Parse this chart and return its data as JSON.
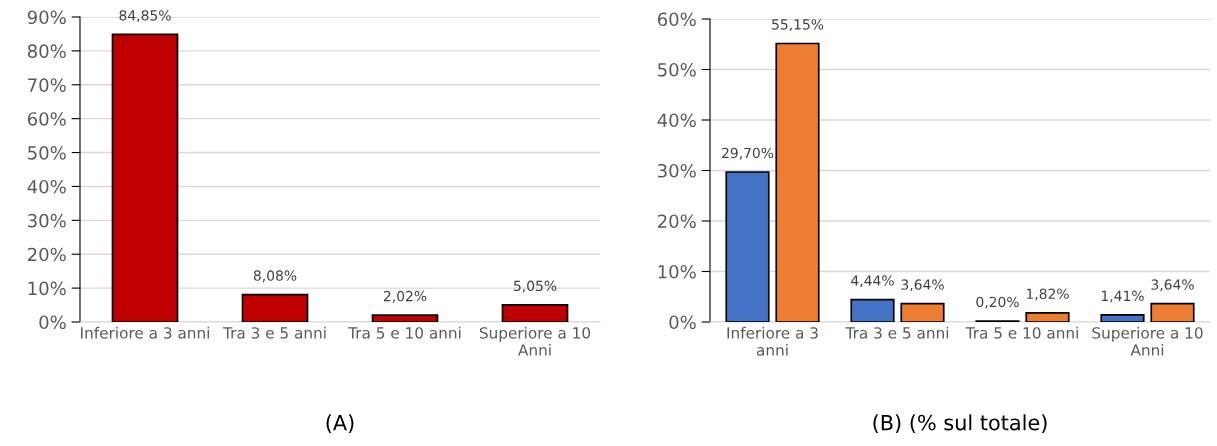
{
  "chart_data": [
    {
      "type": "bar",
      "xlabel": "(A)",
      "categories": [
        "Inferiore a 3 anni",
        "Tra 3 e 5 anni",
        "Tra 5 e 10 anni",
        "Superiore a 10\nAnni"
      ],
      "series": [
        {
          "color": "#c00000",
          "values": [
            84.85,
            8.08,
            2.02,
            5.05
          ],
          "value_labels": [
            "84,85%",
            "8,08%",
            "2,02%",
            "5,05%"
          ]
        }
      ],
      "ylim": [
        0,
        90
      ],
      "yticks": [
        {
          "value": 0,
          "label": "0%"
        },
        {
          "value": 10,
          "label": "10%"
        },
        {
          "value": 20,
          "label": "20%"
        },
        {
          "value": 30,
          "label": "30%"
        },
        {
          "value": 40,
          "label": "40%"
        },
        {
          "value": 50,
          "label": "50%"
        },
        {
          "value": 60,
          "label": "60%"
        },
        {
          "value": 70,
          "label": "70%"
        },
        {
          "value": 80,
          "label": "80%"
        },
        {
          "value": 90,
          "label": "90%"
        }
      ],
      "grid": "y"
    },
    {
      "type": "bar",
      "xlabel": "(B) (% sul totale)",
      "categories": [
        "Inferiore a 3\nanni",
        "Tra 3 e 5 anni",
        "Tra 5 e 10 anni",
        "Superiore a 10\nAnni"
      ],
      "series": [
        {
          "color": "#4472c4",
          "values": [
            29.7,
            4.44,
            0.2,
            1.41
          ],
          "value_labels": [
            "29,70%",
            "4,44%",
            "0,20%",
            "1,41%"
          ]
        },
        {
          "color": "#ed7d31",
          "values": [
            55.15,
            3.64,
            1.82,
            3.64
          ],
          "value_labels": [
            "55,15%",
            "3,64%",
            "1,82%",
            "3,64%"
          ]
        }
      ],
      "ylim": [
        0,
        60
      ],
      "yticks": [
        {
          "value": 0,
          "label": "0%"
        },
        {
          "value": 10,
          "label": "10%"
        },
        {
          "value": 20,
          "label": "20%"
        },
        {
          "value": 30,
          "label": "30%"
        },
        {
          "value": 40,
          "label": "40%"
        },
        {
          "value": 50,
          "label": "50%"
        },
        {
          "value": 60,
          "label": "60%"
        }
      ],
      "grid": "y"
    }
  ]
}
